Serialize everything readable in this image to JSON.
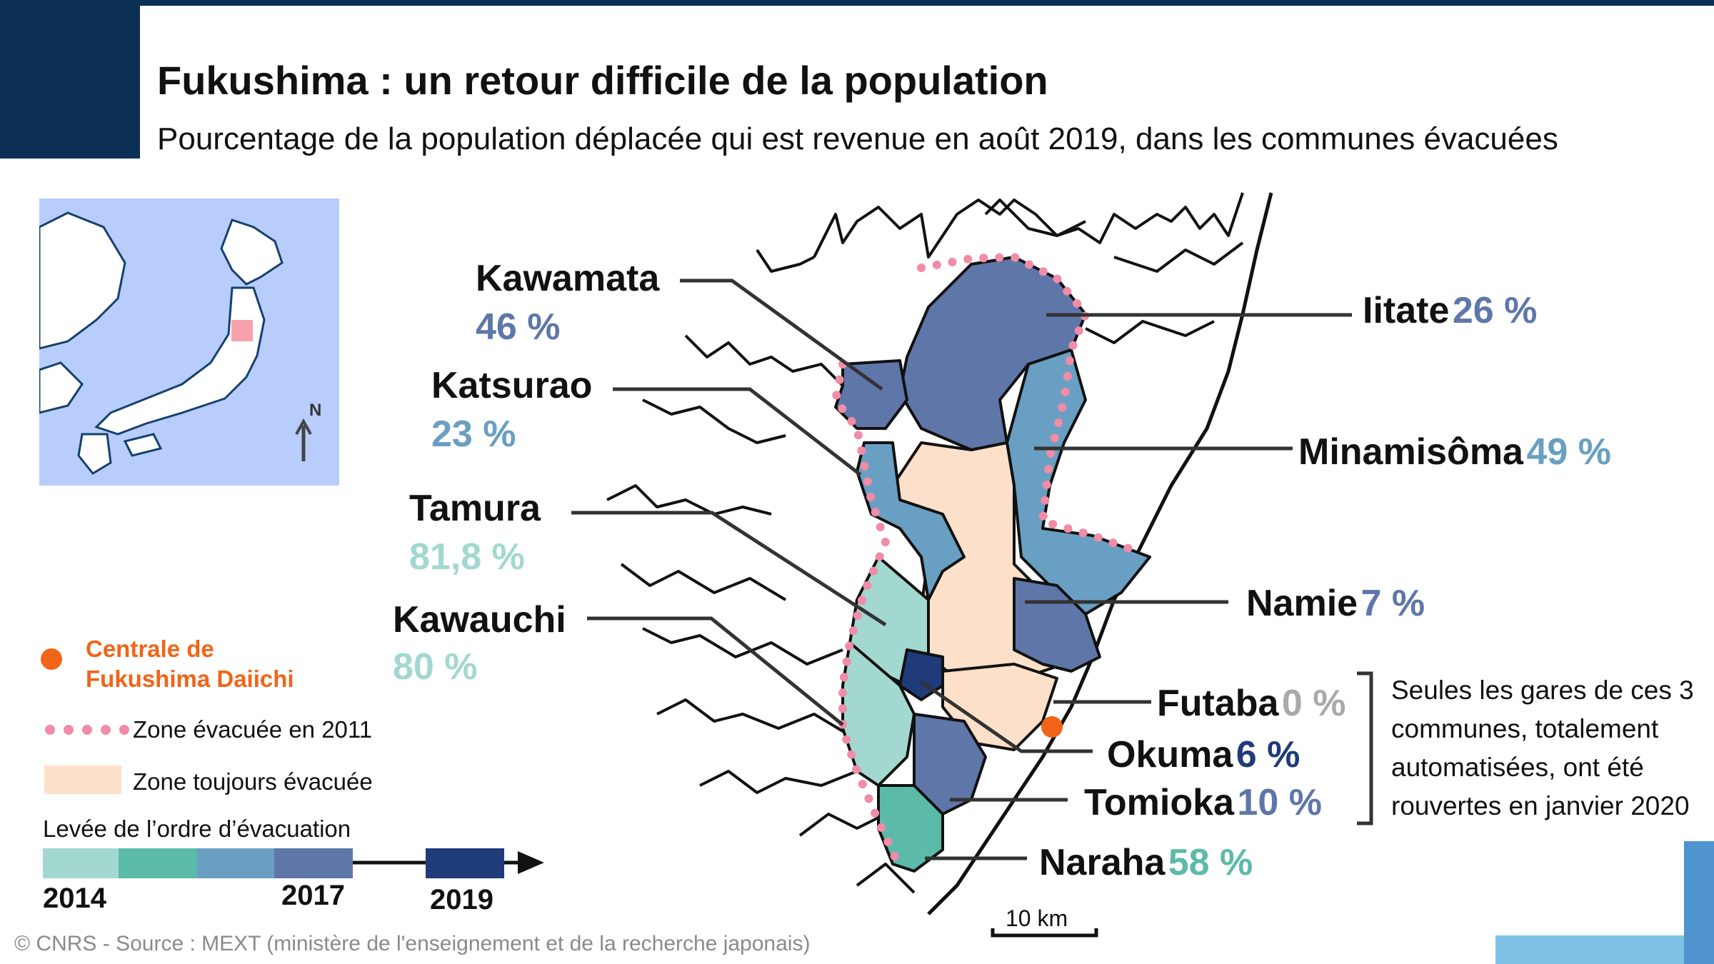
{
  "header": {
    "title": "Fukushima : un retour difficile de la population",
    "subtitle": "Pourcentage de la population déplacée qui est revenue en août 2019, dans les communes évacuées"
  },
  "communes": [
    {
      "name": "Kawamata",
      "value": "46 %",
      "color": "#5f76a9"
    },
    {
      "name": "Katsurao",
      "value": "23 %",
      "color": "#699fc2"
    },
    {
      "name": "Tamura",
      "value": "81,8 %",
      "color": "#a2d8cf"
    },
    {
      "name": "Kawauchi",
      "value": "80 %",
      "color": "#a2d8cf"
    },
    {
      "name": "Iitate",
      "value": "26 %",
      "color": "#5f76a9"
    },
    {
      "name": "Minamisôma",
      "value": "49 %",
      "color": "#699fc2"
    },
    {
      "name": "Namie",
      "value": "7 %",
      "color": "#5f76a9"
    },
    {
      "name": "Futaba",
      "value": "0 %",
      "color": "#a9a9a9"
    },
    {
      "name": "Okuma",
      "value": "6 %",
      "color": "#1f3b7a"
    },
    {
      "name": "Tomioka",
      "value": "10 %",
      "color": "#5f76a9"
    },
    {
      "name": "Naraha",
      "value": "58 %",
      "color": "#5bbba8"
    }
  ],
  "legend": {
    "plant": "Centrale de\nFukushima Daiichi",
    "plant_color": "#f26418",
    "evacuated_2011": "Zone évacuée en 2011",
    "still_evacuated": "Zone toujours évacuée",
    "timeline_title": "Levée de l’ordre d’évacuation",
    "years": [
      "2014",
      "2017",
      "2019"
    ],
    "timeline_colors": [
      "#a2d8cf",
      "#5bbba8",
      "#699fc2",
      "#5f76a9",
      "#1f3b7a"
    ]
  },
  "note": "Seules les gares de ces 3 communes, totalement automatisées, ont été rouvertes en janvier 2020",
  "scale": "10 km",
  "compass": "N",
  "source": "© CNRS - Source : MEXT (ministère de l'enseignement et de la recherche japonais)"
}
